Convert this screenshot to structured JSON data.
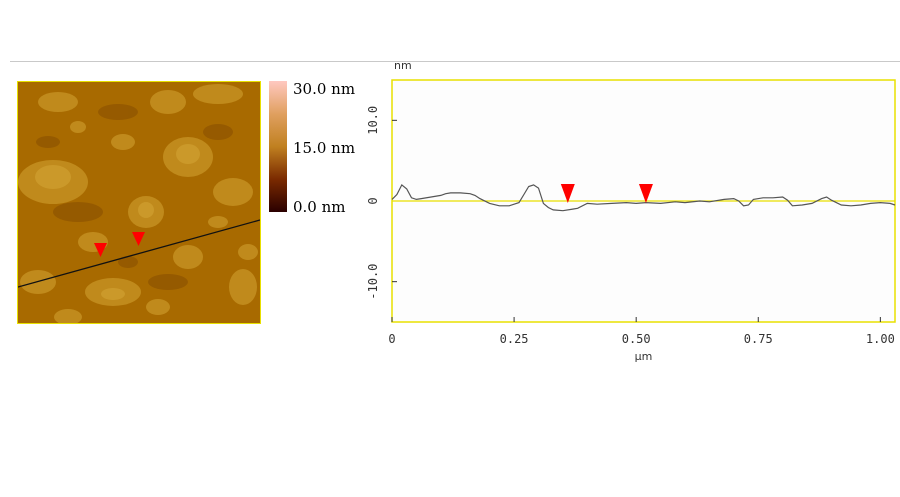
{
  "colorbar": {
    "max_label": "30.0 nm",
    "mid_label": "15.0 nm",
    "min_label": "0.0 nm"
  },
  "chart_data": {
    "type": "line",
    "xlabel": "μm",
    "ylabel": "nm",
    "xlim": [
      0,
      1.03
    ],
    "ylim": [
      -15,
      15
    ],
    "x_ticks": [
      "0",
      "0.25",
      "0.50",
      "0.75",
      "1.00"
    ],
    "y_ticks": [
      "10.0",
      "0",
      "-10.0"
    ],
    "reference_line_y": 0,
    "markers_x": [
      0.36,
      0.52
    ],
    "series": [
      {
        "x": [
          0,
          0.01,
          0.02,
          0.03,
          0.04,
          0.05,
          0.06,
          0.08,
          0.1,
          0.11,
          0.12,
          0.14,
          0.16,
          0.17,
          0.18,
          0.2,
          0.22,
          0.24,
          0.25,
          0.26,
          0.27,
          0.28,
          0.29,
          0.3,
          0.31,
          0.32,
          0.33,
          0.35,
          0.37,
          0.38,
          0.4,
          0.42,
          0.45,
          0.48,
          0.5,
          0.52,
          0.55,
          0.58,
          0.6,
          0.63,
          0.65,
          0.68,
          0.7,
          0.71,
          0.72,
          0.73,
          0.74,
          0.76,
          0.78,
          0.8,
          0.81,
          0.82,
          0.84,
          0.86,
          0.88,
          0.89,
          0.9,
          0.92,
          0.94,
          0.96,
          0.98,
          1.0,
          1.02,
          1.03
        ],
        "y": [
          0.2,
          0.8,
          2.0,
          1.5,
          0.4,
          0.2,
          0.3,
          0.5,
          0.7,
          0.9,
          1.0,
          1.0,
          0.9,
          0.7,
          0.3,
          -0.3,
          -0.6,
          -0.6,
          -0.4,
          -0.2,
          0.8,
          1.8,
          2.0,
          1.6,
          -0.3,
          -0.8,
          -1.1,
          -1.2,
          -1.0,
          -0.9,
          -0.3,
          -0.4,
          -0.3,
          -0.2,
          -0.3,
          -0.2,
          -0.3,
          -0.1,
          -0.2,
          0.0,
          -0.1,
          0.2,
          0.3,
          0.0,
          -0.6,
          -0.5,
          0.2,
          0.4,
          0.4,
          0.5,
          0.1,
          -0.6,
          -0.5,
          -0.3,
          0.3,
          0.5,
          0.1,
          -0.5,
          -0.6,
          -0.5,
          -0.3,
          -0.2,
          -0.3,
          -0.5
        ]
      }
    ]
  }
}
